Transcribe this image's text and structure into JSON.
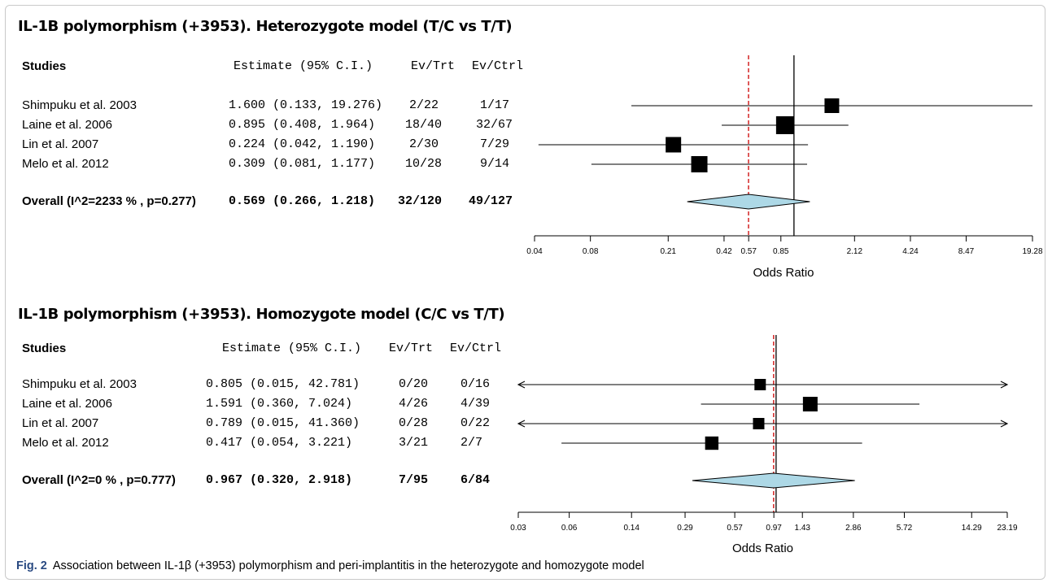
{
  "headers": {
    "studies": "Studies",
    "estimate": "Estimate (95% C.I.)",
    "ev_trt": "Ev/Trt",
    "ev_ctrl": "Ev/Ctrl"
  },
  "chart_data": [
    {
      "type": "forest",
      "title": "IL-1B polymorphism (+3953). Heterozygote model (T/C vs T/T)",
      "xlabel": "Odds Ratio",
      "xscale": "log",
      "xlim": [
        0.04,
        19.28
      ],
      "ticks": [
        0.04,
        0.08,
        0.21,
        0.42,
        0.57,
        0.85,
        2.12,
        4.24,
        8.47,
        19.28
      ],
      "tick_labels": [
        "0.04",
        "0.08",
        "0.21",
        "0.42",
        "0.57",
        "0.85",
        "2.12",
        "4.24",
        "8.47",
        "19.28"
      ],
      "reference_line": 1,
      "pooled_line": 0.569,
      "studies": [
        {
          "name": "Shimpuku et al. 2003",
          "estimate_text": "1.600 (0.133, 19.276)",
          "ev_trt": "2/22",
          "ev_ctrl": "1/17",
          "or": 1.6,
          "lo": 0.133,
          "hi": 19.276,
          "weight": 0.6
        },
        {
          "name": "Laine et al. 2006",
          "estimate_text": "0.895 (0.408,  1.964)",
          "ev_trt": "18/40",
          "ev_ctrl": "32/67",
          "or": 0.895,
          "lo": 0.408,
          "hi": 1.964,
          "weight": 1.0
        },
        {
          "name": "Lin et al. 2007",
          "estimate_text": "0.224 (0.042,  1.190)",
          "ev_trt": "2/30",
          "ev_ctrl": "7/29",
          "or": 0.224,
          "lo": 0.042,
          "hi": 1.19,
          "weight": 0.7
        },
        {
          "name": "Melo et al. 2012",
          "estimate_text": "0.309 (0.081,  1.177)",
          "ev_trt": "10/28",
          "ev_ctrl": "9/14",
          "or": 0.309,
          "lo": 0.081,
          "hi": 1.177,
          "weight": 0.8
        }
      ],
      "overall": {
        "name": "Overall (I^2=2233 % , p=0.277)",
        "estimate_text": "0.569 (0.266,  1.218)",
        "ev_trt": "32/120",
        "ev_ctrl": "49/127",
        "or": 0.569,
        "lo": 0.266,
        "hi": 1.218
      }
    },
    {
      "type": "forest",
      "title": "IL-1B polymorphism (+3953). Homozygote model (C/C vs T/T)",
      "xlabel": "Odds Ratio",
      "xscale": "log",
      "xlim": [
        0.03,
        23.19
      ],
      "ticks": [
        0.03,
        0.06,
        0.14,
        0.29,
        0.57,
        0.97,
        1.43,
        2.86,
        5.72,
        14.29,
        23.19
      ],
      "tick_labels": [
        "0.03",
        "0.06",
        "0.14",
        "0.29",
        "0.57",
        "0.97",
        "1.43",
        "2.86",
        "5.72",
        "14.29",
        "23.19"
      ],
      "reference_line": 1,
      "pooled_line": 0.967,
      "studies": [
        {
          "name": "Shimpuku et al. 2003",
          "estimate_text": "0.805 (0.015, 42.781)",
          "ev_trt": "0/20",
          "ev_ctrl": "0/16",
          "or": 0.805,
          "lo": 0.015,
          "hi": 42.781,
          "weight": 0.5
        },
        {
          "name": "Laine et al. 2006",
          "estimate_text": "1.591 (0.360,  7.024)",
          "ev_trt": "4/26",
          "ev_ctrl": "4/39",
          "or": 1.591,
          "lo": 0.36,
          "hi": 7.024,
          "weight": 1.0
        },
        {
          "name": "Lin et al. 2007",
          "estimate_text": "0.789 (0.015, 41.360)",
          "ev_trt": "0/28",
          "ev_ctrl": "0/22",
          "or": 0.789,
          "lo": 0.015,
          "hi": 41.36,
          "weight": 0.5
        },
        {
          "name": "Melo et al. 2012",
          "estimate_text": "0.417 (0.054,  3.221)",
          "ev_trt": "3/21",
          "ev_ctrl": "2/7",
          "or": 0.417,
          "lo": 0.054,
          "hi": 3.221,
          "weight": 0.8
        }
      ],
      "overall": {
        "name": "Overall (I^2=0 % , p=0.777)",
        "estimate_text": "0.967 (0.320,  2.918)",
        "ev_trt": "7/95",
        "ev_ctrl": "6/84",
        "or": 0.967,
        "lo": 0.32,
        "hi": 2.918
      }
    }
  ],
  "caption": {
    "label": "Fig. 2",
    "text": "Association between IL-1β (+3953) polymorphism and peri-implantitis in the heterozygote and homozygote model"
  },
  "colors": {
    "diamond_fill": "#add8e6",
    "pooled_line": "#cc0000",
    "caption_label": "#2a4a82"
  }
}
